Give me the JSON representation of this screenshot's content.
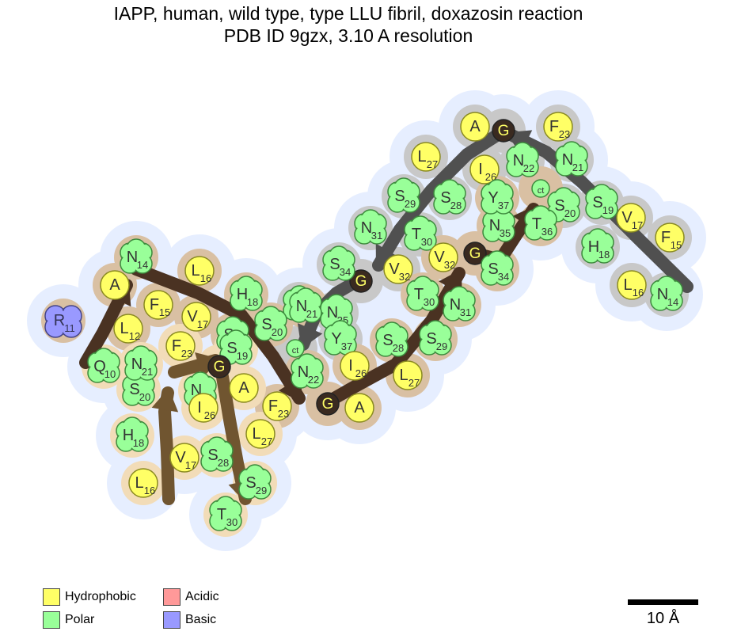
{
  "title_line1": "IAPP, human, wild type, type LLU fibril, doxazosin reaction",
  "title_line2": "PDB ID 9gzx, 3.10 A resolution",
  "legend": [
    {
      "label": "Hydrophobic",
      "color": "#ffff66"
    },
    {
      "label": "Polar",
      "color": "#99ff99"
    },
    {
      "label": "Acidic",
      "color": "#ff9999"
    },
    {
      "label": "Basic",
      "color": "#9999ff"
    }
  ],
  "scale_bar": {
    "label": "10 Å"
  },
  "colors": {
    "hydrophobic": "#ffff66",
    "polar": "#99ff99",
    "acidic": "#ff9999",
    "basic": "#9999ff",
    "glycine": "#3a2a20",
    "halo": "#e6eeff",
    "core_grey": "#c8c8c8",
    "core_tan": "#d9c0a3",
    "core_light": "#f2dcb8",
    "arrow_grey": "#505050",
    "arrow_dark": "#4a3222",
    "arrow_olive": "#705530"
  },
  "chains": [
    {
      "name": "chain-right",
      "arrow_color_key": "arrow_grey",
      "residues": [
        {
          "aa": "N",
          "num": "14",
          "type": "polar"
        },
        {
          "aa": "F",
          "num": "15",
          "type": "hydrophobic"
        },
        {
          "aa": "L",
          "num": "16",
          "type": "hydrophobic"
        },
        {
          "aa": "V",
          "num": "17",
          "type": "hydrophobic"
        },
        {
          "aa": "H",
          "num": "18",
          "type": "polar"
        },
        {
          "aa": "S",
          "num": "19",
          "type": "polar"
        },
        {
          "aa": "S",
          "num": "20",
          "type": "polar"
        },
        {
          "aa": "N",
          "num": "21",
          "type": "polar"
        },
        {
          "aa": "N",
          "num": "22",
          "type": "polar"
        },
        {
          "aa": "F",
          "num": "23",
          "type": "hydrophobic"
        },
        {
          "aa": "G",
          "num": "",
          "type": "glycine"
        },
        {
          "aa": "A",
          "num": "",
          "type": "hydrophobic"
        },
        {
          "aa": "I",
          "num": "26",
          "type": "hydrophobic"
        },
        {
          "aa": "L",
          "num": "27",
          "type": "hydrophobic"
        },
        {
          "aa": "S",
          "num": "28",
          "type": "polar"
        },
        {
          "aa": "S",
          "num": "29",
          "type": "polar"
        },
        {
          "aa": "T",
          "num": "30",
          "type": "polar"
        },
        {
          "aa": "N",
          "num": "31",
          "type": "polar"
        },
        {
          "aa": "V",
          "num": "32",
          "type": "hydrophobic"
        },
        {
          "aa": "G",
          "num": "",
          "type": "glycine"
        },
        {
          "aa": "S",
          "num": "34",
          "type": "polar"
        },
        {
          "aa": "N",
          "num": "35",
          "type": "polar"
        },
        {
          "aa": "T",
          "num": "36",
          "type": "polar"
        },
        {
          "aa": "Y",
          "num": "37",
          "type": "polar"
        },
        {
          "aa": "ct",
          "num": "",
          "type": "polar"
        }
      ]
    },
    {
      "name": "chain-middle",
      "arrow_color_key": "arrow_dark",
      "residues": [
        {
          "aa": "R",
          "num": "11",
          "type": "basic"
        },
        {
          "aa": "L",
          "num": "12",
          "type": "hydrophobic"
        },
        {
          "aa": "A",
          "num": "",
          "type": "hydrophobic"
        },
        {
          "aa": "N",
          "num": "14",
          "type": "polar"
        },
        {
          "aa": "F",
          "num": "15",
          "type": "hydrophobic"
        },
        {
          "aa": "L",
          "num": "16",
          "type": "hydrophobic"
        },
        {
          "aa": "V",
          "num": "17",
          "type": "hydrophobic"
        },
        {
          "aa": "H",
          "num": "18",
          "type": "polar"
        },
        {
          "aa": "S",
          "num": "19",
          "type": "polar"
        },
        {
          "aa": "S",
          "num": "20",
          "type": "polar"
        },
        {
          "aa": "N",
          "num": "21",
          "type": "polar"
        },
        {
          "aa": "N",
          "num": "22",
          "type": "polar"
        },
        {
          "aa": "F",
          "num": "23",
          "type": "hydrophobic"
        },
        {
          "aa": "G",
          "num": "",
          "type": "glycine"
        },
        {
          "aa": "A",
          "num": "",
          "type": "hydrophobic"
        },
        {
          "aa": "I",
          "num": "26",
          "type": "hydrophobic"
        },
        {
          "aa": "L",
          "num": "27",
          "type": "hydrophobic"
        },
        {
          "aa": "S",
          "num": "28",
          "type": "polar"
        },
        {
          "aa": "S",
          "num": "29",
          "type": "polar"
        },
        {
          "aa": "T",
          "num": "30",
          "type": "polar"
        },
        {
          "aa": "N",
          "num": "31",
          "type": "polar"
        },
        {
          "aa": "V",
          "num": "32",
          "type": "hydrophobic"
        },
        {
          "aa": "G",
          "num": "",
          "type": "glycine"
        },
        {
          "aa": "S",
          "num": "34",
          "type": "polar"
        },
        {
          "aa": "N",
          "num": "35",
          "type": "polar"
        },
        {
          "aa": "T",
          "num": "36",
          "type": "polar"
        },
        {
          "aa": "Y",
          "num": "37",
          "type": "polar"
        },
        {
          "aa": "ct",
          "num": "",
          "type": "polar"
        }
      ]
    },
    {
      "name": "chain-left",
      "arrow_color_key": "arrow_olive",
      "residues": [
        {
          "aa": "Q",
          "num": "10",
          "type": "polar"
        },
        {
          "aa": "L",
          "num": "16",
          "type": "hydrophobic"
        },
        {
          "aa": "V",
          "num": "17",
          "type": "hydrophobic"
        },
        {
          "aa": "H",
          "num": "18",
          "type": "polar"
        },
        {
          "aa": "S",
          "num": "19",
          "type": "polar"
        },
        {
          "aa": "S",
          "num": "20",
          "type": "polar"
        },
        {
          "aa": "N",
          "num": "21",
          "type": "polar"
        },
        {
          "aa": "N",
          "num": "22",
          "type": "polar"
        },
        {
          "aa": "F",
          "num": "23",
          "type": "hydrophobic"
        },
        {
          "aa": "G",
          "num": "",
          "type": "glycine"
        },
        {
          "aa": "A",
          "num": "",
          "type": "hydrophobic"
        },
        {
          "aa": "I",
          "num": "26",
          "type": "hydrophobic"
        },
        {
          "aa": "L",
          "num": "27",
          "type": "hydrophobic"
        },
        {
          "aa": "S",
          "num": "28",
          "type": "polar"
        },
        {
          "aa": "S",
          "num": "29",
          "type": "polar"
        },
        {
          "aa": "T",
          "num": "30",
          "type": "polar"
        }
      ]
    }
  ]
}
